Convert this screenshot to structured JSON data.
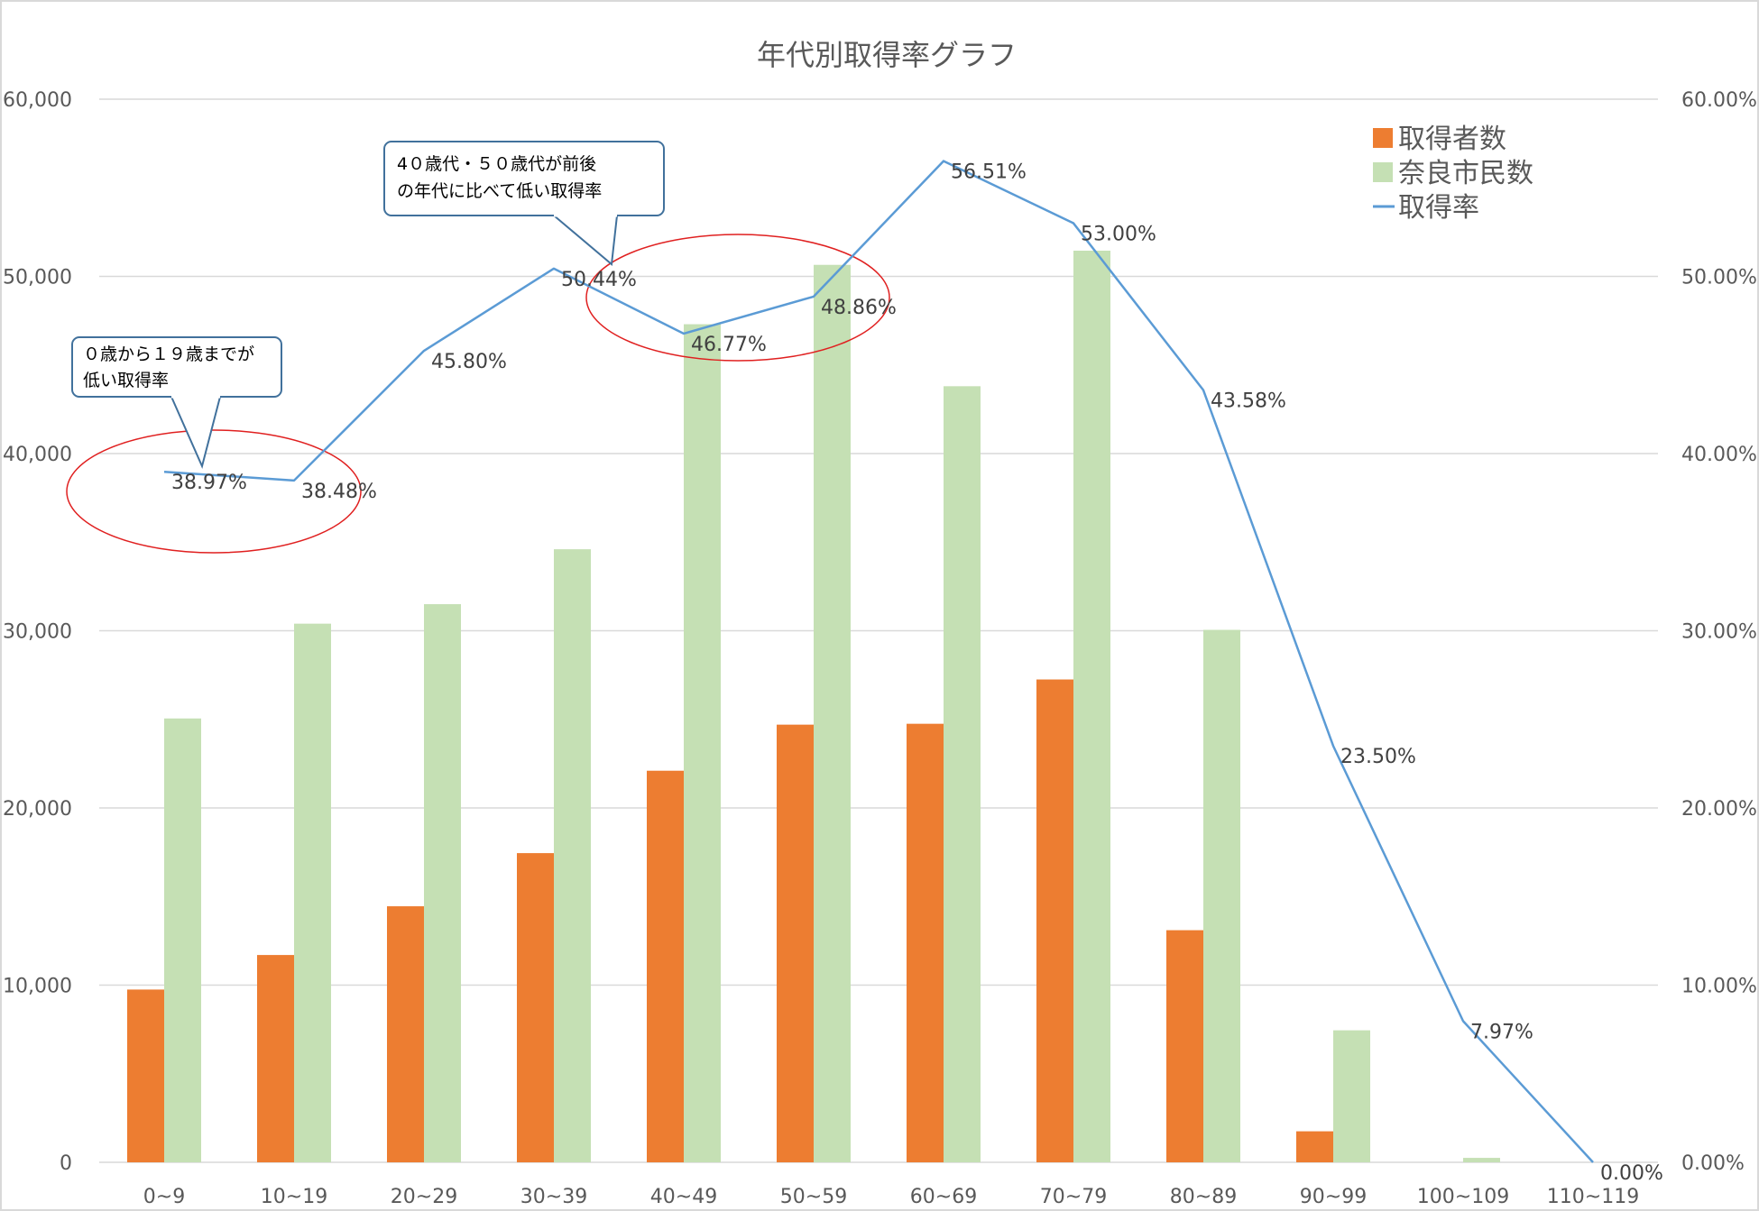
{
  "chart_data": {
    "type": "bar+line",
    "title": "年代別取得率グラフ",
    "categories": [
      "0~9",
      "10~19",
      "20~29",
      "30~39",
      "40~49",
      "50~59",
      "60~69",
      "70~79",
      "80~89",
      "90~99",
      "100~109",
      "110~119"
    ],
    "series": [
      {
        "name": "取得者数",
        "type": "bar",
        "axis": "left",
        "color": "#ed7d31",
        "values": [
          9750,
          11700,
          14450,
          17450,
          22100,
          24700,
          24750,
          27250,
          13100,
          1750,
          0,
          0
        ]
      },
      {
        "name": "奈良市民数",
        "type": "bar",
        "axis": "left",
        "color": "#c5e0b4",
        "values": [
          25050,
          30400,
          31500,
          34600,
          47300,
          50650,
          43800,
          51450,
          30050,
          7450,
          250,
          0
        ]
      },
      {
        "name": "取得率",
        "type": "line",
        "axis": "right",
        "color": "#5b9bd5",
        "values": [
          38.97,
          38.48,
          45.8,
          50.44,
          46.77,
          48.86,
          56.51,
          53.0,
          43.58,
          23.5,
          7.97,
          0.0
        ],
        "labels": [
          "38.97%",
          "38.48%",
          "45.80%",
          "50.44%",
          "46.77%",
          "48.86%",
          "56.51%",
          "53.00%",
          "43.58%",
          "23.50%",
          "7.97%",
          "0.00%"
        ]
      }
    ],
    "y_left": {
      "ylim": [
        0,
        60000
      ],
      "ticks": [
        "0",
        "10,000",
        "20,000",
        "30,000",
        "40,000",
        "50,000",
        "60,000"
      ]
    },
    "y_right": {
      "ylim": [
        0,
        60
      ],
      "ticks": [
        "0.00%",
        "10.00%",
        "20.00%",
        "30.00%",
        "40.00%",
        "50.00%",
        "60.00%"
      ]
    },
    "grid": true,
    "legend": {
      "position": "top-right",
      "items": [
        "取得者数",
        "奈良市民数",
        "取得率"
      ]
    },
    "annotations": [
      {
        "text_lines": [
          "０歳から１９歳までが",
          "低い取得率"
        ],
        "target_category": "0~9",
        "highlight": [
          "0~9",
          "10~19"
        ]
      },
      {
        "text_lines": [
          "4０歳代・５０歳代が前後",
          "の年代に比べて低い取得率"
        ],
        "target_category": "30~39",
        "highlight": [
          "40~49",
          "50~59"
        ]
      }
    ],
    "highlight_color": "#e02020",
    "gridline_color": "#d9d9d9"
  }
}
